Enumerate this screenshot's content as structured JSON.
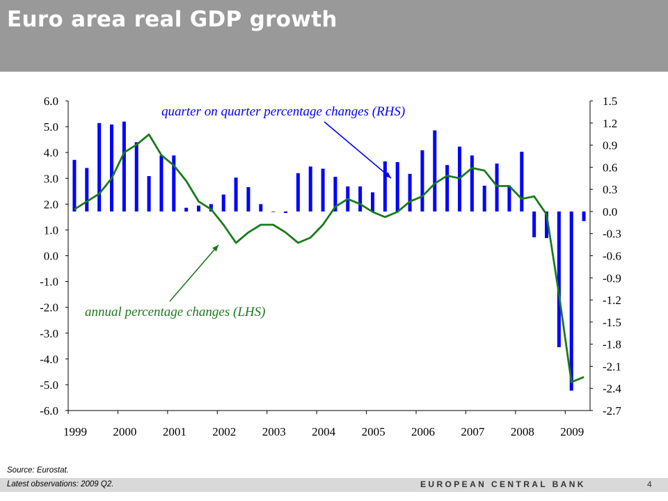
{
  "slide": {
    "title": "Euro area real GDP growth",
    "source": "Source: Eurostat.",
    "latest": "Latest observations: 2009 Q2.",
    "bank": "EUROPEAN CENTRAL BANK",
    "page": "4"
  },
  "chart_data": {
    "type": "bar+line",
    "title": "",
    "x_tick_labels": [
      "1999",
      "2000",
      "2001",
      "2002",
      "2003",
      "2004",
      "2005",
      "2006",
      "2007",
      "2008",
      "2009"
    ],
    "left_axis": {
      "min": -6.0,
      "max": 6.0,
      "step": 1.0,
      "tick_labels": [
        "6.0",
        "5.0",
        "4.0",
        "3.0",
        "2.0",
        "1.0",
        "0.0",
        "-1.0",
        "-2.0",
        "-3.0",
        "-4.0",
        "-5.0",
        "-6.0"
      ]
    },
    "right_axis": {
      "min": -2.7,
      "max": 1.5,
      "step": 0.3,
      "tick_labels": [
        "1.5",
        "1.2",
        "0.9",
        "0.6",
        "0.3",
        "0.0",
        "-0.3",
        "-0.6",
        "-0.9",
        "-1.2",
        "-1.5",
        "-1.8",
        "-2.1",
        "-2.4",
        "-2.7"
      ]
    },
    "quarters": [
      "1999Q1",
      "1999Q2",
      "1999Q3",
      "1999Q4",
      "2000Q1",
      "2000Q2",
      "2000Q3",
      "2000Q4",
      "2001Q1",
      "2001Q2",
      "2001Q3",
      "2001Q4",
      "2002Q1",
      "2002Q2",
      "2002Q3",
      "2002Q4",
      "2003Q1",
      "2003Q2",
      "2003Q3",
      "2003Q4",
      "2004Q1",
      "2004Q2",
      "2004Q3",
      "2004Q4",
      "2005Q1",
      "2005Q2",
      "2005Q3",
      "2005Q4",
      "2006Q1",
      "2006Q2",
      "2006Q3",
      "2006Q4",
      "2007Q1",
      "2007Q2",
      "2007Q3",
      "2007Q4",
      "2008Q1",
      "2008Q2",
      "2008Q3",
      "2008Q4",
      "2009Q1",
      "2009Q2"
    ],
    "series": [
      {
        "name": "quarter on quarter percentage changes (RHS)",
        "type": "bar",
        "axis": "right",
        "color": "#0000ff",
        "values": [
          0.7,
          0.59,
          1.2,
          1.18,
          1.22,
          0.94,
          0.48,
          0.76,
          0.76,
          0.05,
          0.08,
          0.1,
          0.23,
          0.46,
          0.33,
          0.1,
          0.0,
          -0.02,
          0.52,
          0.61,
          0.58,
          0.47,
          0.34,
          0.34,
          0.26,
          0.68,
          0.67,
          0.51,
          0.83,
          1.1,
          0.63,
          0.88,
          0.76,
          0.35,
          0.65,
          0.35,
          0.81,
          -0.35,
          -0.36,
          -1.84,
          -2.43,
          -0.13
        ]
      },
      {
        "name": "annual percentage changes (LHS)",
        "type": "line",
        "axis": "left",
        "color": "#1a7a1a",
        "values": [
          1.8,
          2.1,
          2.4,
          3.0,
          4.0,
          4.3,
          4.7,
          3.9,
          3.5,
          2.9,
          2.1,
          1.8,
          1.2,
          0.5,
          0.9,
          1.2,
          1.2,
          0.9,
          0.5,
          0.7,
          1.2,
          1.9,
          2.2,
          2.0,
          1.7,
          1.5,
          1.7,
          2.1,
          2.3,
          2.8,
          3.1,
          3.0,
          3.4,
          3.3,
          2.7,
          2.7,
          2.2,
          2.3,
          1.6,
          -1.5,
          -4.9,
          -4.7
        ]
      }
    ],
    "annotations": [
      {
        "text": "quarter on quarter percentage changes (RHS)",
        "series": 0
      },
      {
        "text": "annual percentage changes (LHS)",
        "series": 1
      }
    ],
    "grid": false,
    "legend": "none"
  }
}
